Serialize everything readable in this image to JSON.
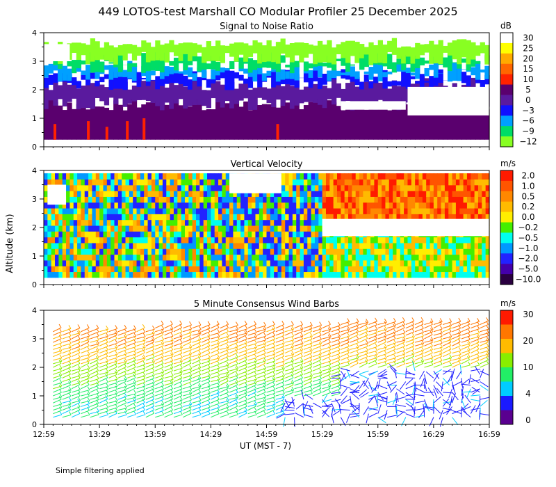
{
  "title": "449 LOTOS-test Marshall CO Modular Profiler 25 December 2025",
  "y_axis_label": "Altitude (km)",
  "x_axis_label": "UT  (MST - 7)",
  "footer_note": "Simple filtering applied",
  "chart_data": [
    {
      "type": "heatmap",
      "title": "Signal to Noise Ratio",
      "colorbar_unit": "dB",
      "colorbar_ticks": [
        "30",
        "25",
        "20",
        "15",
        "10",
        "5",
        "0",
        "−3",
        "−6",
        "−9",
        "−12"
      ],
      "colorbar_colors": [
        "#ffffff",
        "#ffff00",
        "#ffaa00",
        "#ff6600",
        "#ff2200",
        "#5a006e",
        "#5a1a9e",
        "#1010ff",
        "#00a0ff",
        "#00dd66",
        "#88ff22"
      ],
      "x_ticks": [
        "12:59",
        "13:29",
        "13:59",
        "14:29",
        "14:59",
        "15:29",
        "15:59",
        "16:29",
        "16:59"
      ],
      "y_ticks": [
        "0",
        "1",
        "2",
        "3",
        "4"
      ],
      "ylim": [
        0,
        4
      ],
      "xlim_minutes_from_1259": [
        0,
        240
      ],
      "data_range_km": [
        0.25,
        3.7
      ],
      "bands": [
        {
          "class": "5",
          "min_km": 0.25,
          "max_km": 1.5
        },
        {
          "class": "0",
          "min_km": 1.5,
          "max_km": 2.2
        },
        {
          "class": "-3",
          "min_km": 2.2,
          "max_km": 2.5
        },
        {
          "class": "-6",
          "min_km": 2.5,
          "max_km": 2.8
        },
        {
          "class": "-9",
          "min_km": 2.8,
          "max_km": 3.1
        },
        {
          "class": "-12",
          "min_km": 3.1,
          "max_km": 3.7
        }
      ],
      "hot_spots": [
        {
          "class": "10",
          "minute": 6,
          "max_km": 0.8
        },
        {
          "class": "10",
          "minute": 24,
          "max_km": 0.9
        },
        {
          "class": "10",
          "minute": 34,
          "max_km": 0.7
        },
        {
          "class": "10",
          "minute": 45,
          "max_km": 0.9
        },
        {
          "class": "10",
          "minute": 54,
          "max_km": 1.0
        },
        {
          "class": "10",
          "minute": 126,
          "max_km": 0.8
        }
      ],
      "white_patches": [
        {
          "minute_start": 196,
          "minute_end": 240,
          "min_km": 1.1,
          "max_km": 2.1
        },
        {
          "minute_start": 160,
          "minute_end": 195,
          "min_km": 1.3,
          "max_km": 1.6
        },
        {
          "minute_start": 0,
          "minute_end": 14,
          "min_km": 3.0,
          "max_km": 3.6
        }
      ]
    },
    {
      "type": "heatmap",
      "title": "Vertical Velocity",
      "colorbar_unit": "m/s",
      "colorbar_ticks": [
        "2.0",
        "1.0",
        "0.5",
        "0.2",
        "0.0",
        "−0.2",
        "−0.5",
        "−1.0",
        "−2.0",
        "−5.0",
        "−10.0"
      ],
      "colorbar_colors": [
        "#ff1a00",
        "#ff5500",
        "#ff8800",
        "#ffbb00",
        "#ffee00",
        "#44ee00",
        "#00ffee",
        "#0099ff",
        "#2222ff",
        "#4400aa",
        "#2a0040"
      ],
      "x_ticks": [
        "12:59",
        "13:29",
        "13:59",
        "14:29",
        "14:59",
        "15:29",
        "15:59",
        "16:29",
        "16:59"
      ],
      "y_ticks": [
        "0",
        "1",
        "2",
        "3",
        "4"
      ],
      "ylim": [
        0,
        4
      ],
      "data_range_km": [
        0.25,
        3.9
      ],
      "regimes": [
        {
          "minute_start": 0,
          "minute_end": 150,
          "dominant": "mixed (-0.5 to 0.5)"
        },
        {
          "minute_start": 150,
          "minute_end": 240,
          "dominant": "0.5 to 2.0 above 2.2 km; -0.2 to 0.2 below"
        }
      ],
      "white_patches": [
        {
          "minute_start": 150,
          "minute_end": 240,
          "min_km": 1.7,
          "max_km": 2.3
        },
        {
          "minute_start": 100,
          "minute_end": 128,
          "min_km": 3.2,
          "max_km": 3.9
        },
        {
          "minute_start": 2,
          "minute_end": 12,
          "min_km": 2.8,
          "max_km": 3.5
        }
      ]
    },
    {
      "type": "scatter",
      "title": "5 Minute Consensus Wind Barbs",
      "colorbar_unit": "m/s",
      "colorbar_ticks": [
        "30",
        "20",
        "10",
        "4",
        "0"
      ],
      "colorbar_colors": [
        "#ff1a00",
        "#ff7700",
        "#ffbb00",
        "#88ee00",
        "#22ee66",
        "#00ccff",
        "#1a1aff",
        "#5a0090"
      ],
      "x_ticks": [
        "12:59",
        "13:29",
        "13:59",
        "14:29",
        "14:59",
        "15:29",
        "15:59",
        "16:29",
        "16:59"
      ],
      "y_ticks": [
        "0",
        "1",
        "2",
        "3",
        "4"
      ],
      "ylim": [
        0,
        4
      ],
      "speed_profile_m_s": [
        {
          "height_km": 0.25,
          "speed": 6
        },
        {
          "height_km": 1.0,
          "speed": 7
        },
        {
          "height_km": 2.0,
          "speed": 14
        },
        {
          "height_km": 2.8,
          "speed": 20
        },
        {
          "height_km": 3.6,
          "speed": 22
        }
      ],
      "light_region": {
        "minute_start": 130,
        "minute_end": 240,
        "max_km": 1.9,
        "speed": 2
      }
    }
  ]
}
